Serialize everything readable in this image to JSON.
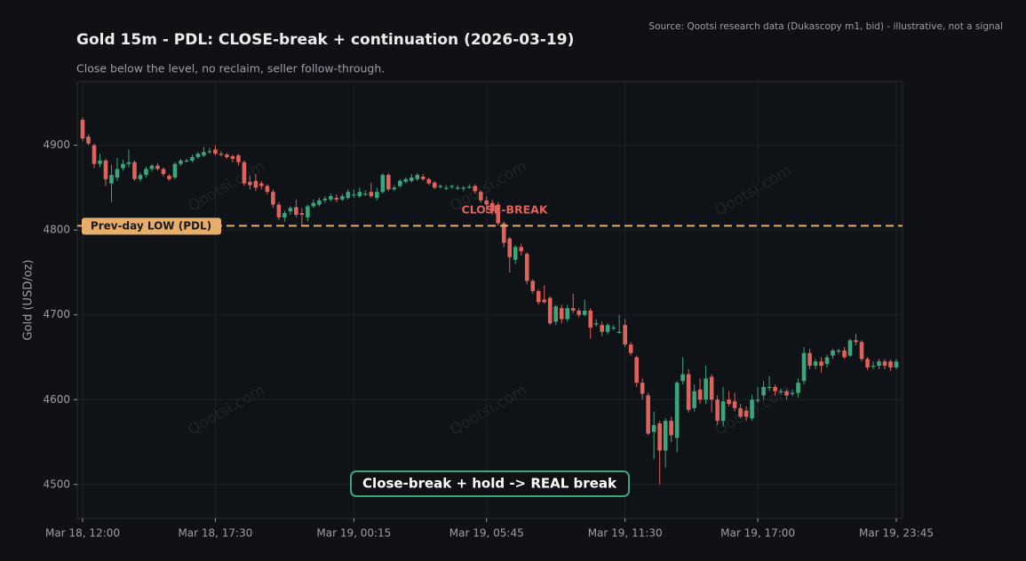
{
  "chart_data": {
    "type": "candlestick",
    "title": "Gold 15m - PDL: CLOSE-break + continuation (2026-03-19)",
    "subtitle": "Close below the level, no reclaim, seller follow-through.",
    "source": "Source: Qootsi research data (Dukascopy m1, bid) - illustrative, not a signal",
    "ylabel": "Gold (USD/oz)",
    "watermark": "Qootsi.com",
    "ylim": [
      4460,
      4975
    ],
    "yticks": [
      4500,
      4600,
      4700,
      4800,
      4900
    ],
    "grid": true,
    "up_color": "#3ba57c",
    "down_color": "#e0625a",
    "level": {
      "value": 4805,
      "label": "Prev-day LOW (PDL)",
      "color": "#e6ae6a"
    },
    "annotations": [
      {
        "text": "CLOSE-BREAK",
        "color": "#e0625a"
      },
      {
        "text": "Close-break + hold -> REAL break",
        "color": "#3ba57c"
      }
    ],
    "categories": [
      "Mar 18, 12:00",
      null,
      null,
      null,
      null,
      null,
      null,
      null,
      null,
      null,
      null,
      null,
      null,
      null,
      null,
      null,
      null,
      null,
      null,
      null,
      null,
      null,
      null,
      "Mar 18, 17:30",
      null,
      null,
      null,
      null,
      null,
      null,
      null,
      null,
      null,
      null,
      null,
      null,
      null,
      null,
      null,
      null,
      null,
      null,
      null,
      null,
      null,
      null,
      null,
      "Mar 19, 00:15",
      null,
      null,
      null,
      null,
      null,
      null,
      null,
      null,
      null,
      null,
      null,
      null,
      null,
      null,
      null,
      null,
      null,
      null,
      null,
      null,
      null,
      null,
      "Mar 19, 05:45",
      null,
      null,
      null,
      null,
      null,
      null,
      null,
      null,
      null,
      null,
      null,
      null,
      null,
      null,
      null,
      null,
      null,
      null,
      null,
      null,
      null,
      null,
      null,
      "Mar 19, 11:30",
      null,
      null,
      null,
      null,
      null,
      null,
      null,
      null,
      null,
      null,
      null,
      null,
      null,
      null,
      null,
      null,
      null,
      null,
      null,
      null,
      null,
      null,
      "Mar 19, 17:00",
      null,
      null,
      null,
      null,
      null,
      null,
      null,
      null,
      null,
      null,
      null,
      null,
      null,
      null,
      null,
      null,
      null,
      null,
      null,
      null,
      null,
      null,
      null,
      "Mar 19, 23:45"
    ],
    "ohlc": [
      [
        4930,
        4933,
        4905,
        4908
      ],
      [
        4910,
        4913,
        4900,
        4902
      ],
      [
        4900,
        4902,
        4873,
        4878
      ],
      [
        4878,
        4890,
        4874,
        4882
      ],
      [
        4882,
        4884,
        4852,
        4860
      ],
      [
        4855,
        4877,
        4833,
        4865
      ],
      [
        4862,
        4885,
        4858,
        4872
      ],
      [
        4873,
        4883,
        4870,
        4878
      ],
      [
        4878,
        4895,
        4874,
        4880
      ],
      [
        4880,
        4882,
        4858,
        4860
      ],
      [
        4860,
        4868,
        4857,
        4865
      ],
      [
        4865,
        4875,
        4862,
        4872
      ],
      [
        4872,
        4878,
        4869,
        4876
      ],
      [
        4876,
        4879,
        4870,
        4872
      ],
      [
        4872,
        4874,
        4863,
        4866
      ],
      [
        4864,
        4866,
        4858,
        4860
      ],
      [
        4862,
        4880,
        4860,
        4878
      ],
      [
        4878,
        4884,
        4876,
        4882
      ],
      [
        4882,
        4884,
        4880,
        4882
      ],
      [
        4882,
        4889,
        4880,
        4886
      ],
      [
        4886,
        4892,
        4884,
        4890
      ],
      [
        4888,
        4898,
        4886,
        4892
      ],
      [
        4893,
        4897,
        4890,
        4893
      ],
      [
        4895,
        4900,
        4888,
        4890
      ],
      [
        4890,
        4893,
        4887,
        4889
      ],
      [
        4889,
        4891,
        4884,
        4886
      ],
      [
        4887,
        4889,
        4880,
        4884
      ],
      [
        4888,
        4890,
        4876,
        4880
      ],
      [
        4880,
        4882,
        4852,
        4855
      ],
      [
        4857,
        4864,
        4848,
        4853
      ],
      [
        4858,
        4866,
        4846,
        4850
      ],
      [
        4855,
        4858,
        4848,
        4852
      ],
      [
        4852,
        4854,
        4842,
        4845
      ],
      [
        4845,
        4848,
        4826,
        4830
      ],
      [
        4830,
        4833,
        4812,
        4815
      ],
      [
        4815,
        4823,
        4810,
        4820
      ],
      [
        4822,
        4828,
        4818,
        4826
      ],
      [
        4827,
        4836,
        4815,
        4818
      ],
      [
        4820,
        4826,
        4805,
        4818
      ],
      [
        4815,
        4830,
        4810,
        4828
      ],
      [
        4828,
        4836,
        4826,
        4832
      ],
      [
        4830,
        4838,
        4828,
        4835
      ],
      [
        4835,
        4840,
        4832,
        4837
      ],
      [
        4836,
        4843,
        4834,
        4840
      ],
      [
        4838,
        4842,
        4833,
        4836
      ],
      [
        4836,
        4843,
        4834,
        4840
      ],
      [
        4838,
        4848,
        4836,
        4845
      ],
      [
        4842,
        4848,
        4838,
        4842
      ],
      [
        4840,
        4850,
        4838,
        4845
      ],
      [
        4843,
        4847,
        4840,
        4843
      ],
      [
        4845,
        4856,
        4838,
        4840
      ],
      [
        4838,
        4850,
        4835,
        4845
      ],
      [
        4845,
        4867,
        4843,
        4865
      ],
      [
        4865,
        4867,
        4846,
        4848
      ],
      [
        4848,
        4853,
        4846,
        4850
      ],
      [
        4852,
        4860,
        4850,
        4858
      ],
      [
        4857,
        4862,
        4855,
        4860
      ],
      [
        4858,
        4866,
        4856,
        4862
      ],
      [
        4860,
        4867,
        4858,
        4865
      ],
      [
        4863,
        4866,
        4858,
        4860
      ],
      [
        4860,
        4862,
        4853,
        4855
      ],
      [
        4856,
        4858,
        4848,
        4850
      ],
      [
        4852,
        4854,
        4849,
        4852
      ],
      [
        4850,
        4853,
        4847,
        4850
      ],
      [
        4852,
        4854,
        4849,
        4852
      ],
      [
        4850,
        4853,
        4847,
        4850
      ],
      [
        4850,
        4852,
        4846,
        4850
      ],
      [
        4851,
        4854,
        4849,
        4851
      ],
      [
        4852,
        4854,
        4843,
        4846
      ],
      [
        4845,
        4847,
        4832,
        4835
      ],
      [
        4835,
        4840,
        4820,
        4830
      ],
      [
        4832,
        4836,
        4818,
        4822
      ],
      [
        4830,
        4833,
        4805,
        4808
      ],
      [
        4808,
        4810,
        4780,
        4785
      ],
      [
        4790,
        4792,
        4750,
        4768
      ],
      [
        4765,
        4782,
        4760,
        4780
      ],
      [
        4780,
        4784,
        4770,
        4775
      ],
      [
        4772,
        4774,
        4736,
        4740
      ],
      [
        4740,
        4742,
        4725,
        4728
      ],
      [
        4728,
        4730,
        4712,
        4715
      ],
      [
        4718,
        4735,
        4713,
        4715
      ],
      [
        4720,
        4722,
        4688,
        4690
      ],
      [
        4692,
        4712,
        4688,
        4710
      ],
      [
        4708,
        4712,
        4690,
        4695
      ],
      [
        4695,
        4712,
        4692,
        4708
      ],
      [
        4708,
        4725,
        4702,
        4705
      ],
      [
        4705,
        4708,
        4697,
        4700
      ],
      [
        4700,
        4718,
        4698,
        4705
      ],
      [
        4705,
        4708,
        4672,
        4685
      ],
      [
        4690,
        4695,
        4686,
        4690
      ],
      [
        4688,
        4692,
        4675,
        4680
      ],
      [
        4680,
        4690,
        4677,
        4688
      ],
      [
        4685,
        4688,
        4682,
        4685
      ],
      [
        4680,
        4700,
        4678,
        4680
      ],
      [
        4688,
        4695,
        4662,
        4665
      ],
      [
        4665,
        4668,
        4652,
        4655
      ],
      [
        4650,
        4652,
        4615,
        4620
      ],
      [
        4620,
        4625,
        4600,
        4607
      ],
      [
        4605,
        4608,
        4558,
        4560
      ],
      [
        4562,
        4586,
        4530,
        4570
      ],
      [
        4572,
        4575,
        4500,
        4540
      ],
      [
        4540,
        4578,
        4520,
        4575
      ],
      [
        4575,
        4580,
        4550,
        4558
      ],
      [
        4555,
        4622,
        4538,
        4620
      ],
      [
        4622,
        4650,
        4618,
        4630
      ],
      [
        4630,
        4636,
        4585,
        4588
      ],
      [
        4590,
        4618,
        4586,
        4610
      ],
      [
        4612,
        4625,
        4595,
        4600
      ],
      [
        4600,
        4640,
        4595,
        4625
      ],
      [
        4627,
        4630,
        4585,
        4600
      ],
      [
        4600,
        4605,
        4570,
        4575
      ],
      [
        4575,
        4615,
        4568,
        4598
      ],
      [
        4600,
        4610,
        4592,
        4595
      ],
      [
        4598,
        4608,
        4586,
        4590
      ],
      [
        4590,
        4595,
        4578,
        4580
      ],
      [
        4587,
        4592,
        4575,
        4580
      ],
      [
        4578,
        4606,
        4575,
        4600
      ],
      [
        4600,
        4615,
        4596,
        4600
      ],
      [
        4605,
        4622,
        4600,
        4615
      ],
      [
        4615,
        4628,
        4610,
        4615
      ],
      [
        4615,
        4618,
        4605,
        4610
      ],
      [
        4610,
        4613,
        4606,
        4610
      ],
      [
        4610,
        4612,
        4600,
        4605
      ],
      [
        4608,
        4612,
        4604,
        4608
      ],
      [
        4608,
        4625,
        4602,
        4620
      ],
      [
        4622,
        4662,
        4618,
        4655
      ],
      [
        4655,
        4660,
        4636,
        4640
      ],
      [
        4640,
        4648,
        4636,
        4645
      ],
      [
        4645,
        4650,
        4632,
        4640
      ],
      [
        4642,
        4653,
        4638,
        4650
      ],
      [
        4652,
        4660,
        4648,
        4658
      ],
      [
        4658,
        4660,
        4654,
        4658
      ],
      [
        4658,
        4662,
        4648,
        4650
      ],
      [
        4652,
        4672,
        4650,
        4670
      ],
      [
        4670,
        4678,
        4664,
        4668
      ],
      [
        4668,
        4670,
        4645,
        4648
      ],
      [
        4648,
        4650,
        4635,
        4638
      ],
      [
        4640,
        4645,
        4636,
        4640
      ],
      [
        4640,
        4648,
        4636,
        4645
      ],
      [
        4645,
        4648,
        4636,
        4640
      ],
      [
        4645,
        4647,
        4634,
        4638
      ],
      [
        4638,
        4648,
        4636,
        4645
      ]
    ]
  }
}
